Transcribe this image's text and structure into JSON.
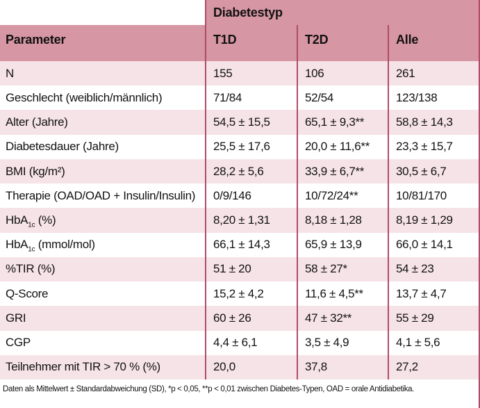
{
  "header": {
    "group_label": "Diabetestyp",
    "columns": [
      "Parameter",
      "T1D",
      "T2D",
      "Alle"
    ]
  },
  "rows": [
    {
      "label": "N",
      "t1d": "155",
      "t2d": "106",
      "alle": "261"
    },
    {
      "label": "Geschlecht (weiblich/männlich)",
      "t1d": "71/84",
      "t2d": "52/54",
      "alle": "123/138"
    },
    {
      "label": "Alter (Jahre)",
      "t1d": "54,5 ± 15,5",
      "t2d": "65,1 ± 9,3**",
      "alle": "58,8 ± 14,3"
    },
    {
      "label": "Diabetesdauer (Jahre)",
      "t1d": "25,5 ± 17,6",
      "t2d": "20,0 ± 11,6**",
      "alle": "23,3 ± 15,7"
    },
    {
      "label": "BMI (kg/m²)",
      "t1d": "28,2 ± 5,6",
      "t2d": "33,9 ± 6,7**",
      "alle": "30,5 ± 6,7"
    },
    {
      "label": "Therapie (OAD/OAD + Insulin/Insulin)",
      "t1d": "0/9/146",
      "t2d": "10/72/24**",
      "alle": "10/81/170"
    },
    {
      "label_pre": "HbA",
      "label_sub": "1c",
      "label_post": " (%)",
      "t1d": "8,20 ± 1,31",
      "t2d": "8,18 ± 1,28",
      "alle": "8,19 ± 1,29"
    },
    {
      "label_pre": "HbA",
      "label_sub": "1c",
      "label_post": " (mmol/mol)",
      "t1d": "66,1 ± 14,3",
      "t2d": "65,9 ± 13,9",
      "alle": "66,0 ± 14,1"
    },
    {
      "label": "%TIR (%)",
      "t1d": "51 ± 20",
      "t2d": "58 ± 27*",
      "alle": "54 ± 23"
    },
    {
      "label": "Q-Score",
      "t1d": "15,2 ± 4,2",
      "t2d": "11,6 ± 4,5**",
      "alle": "13,7 ± 4,7"
    },
    {
      "label": "GRI",
      "t1d": "60 ± 26",
      "t2d": "47 ± 32**",
      "alle": "55 ± 29"
    },
    {
      "label": "CGP",
      "t1d": "4,4 ± 6,1",
      "t2d": "3,5 ± 4,9",
      "alle": "4,1 ± 5,6"
    },
    {
      "label": "Teilnehmer mit TIR > 70 % (%)",
      "t1d": "20,0",
      "t2d": "37,8",
      "alle": "27,2"
    }
  ],
  "footnote": "Daten als Mittelwert ± Standardabweichung (SD), *p < 0,05, **p < 0,01 zwischen Diabetes-Typen, OAD = orale Antidiabetika.",
  "colors": {
    "header_bg": "#d696a3",
    "row_alt_bg": "#f6e3e8",
    "grid_line": "#b04a68",
    "page_bg": "#ffffff"
  }
}
